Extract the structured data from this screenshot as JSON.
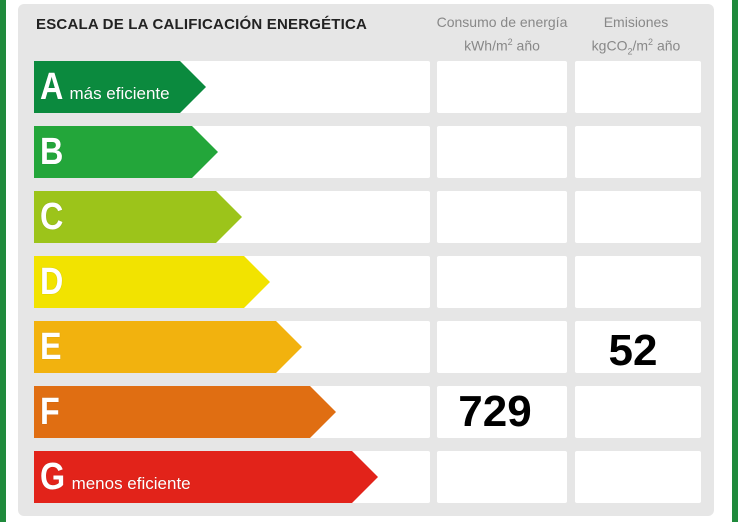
{
  "title": "ESCALA DE LA CALIFICACIÓN ENERGÉTICA",
  "columns": {
    "consumo": {
      "line1": "Consumo de energía",
      "unit_a": "kWh/m",
      "unit_sup": "2",
      "unit_b": " año"
    },
    "emisiones": {
      "line1": "Emisiones",
      "unit_a": "kgCO",
      "unit_sub": "2",
      "unit_b": "/m",
      "unit_sup": "2",
      "unit_c": " año"
    }
  },
  "ratings": [
    {
      "letter": "A",
      "label": "más eficiente",
      "color": "#0b8a3e"
    },
    {
      "letter": "B",
      "label": "",
      "color": "#23a63a"
    },
    {
      "letter": "C",
      "label": "",
      "color": "#9cc41a"
    },
    {
      "letter": "D",
      "label": "",
      "color": "#f2e300"
    },
    {
      "letter": "E",
      "label": "",
      "color": "#f2b20e"
    },
    {
      "letter": "F",
      "label": "",
      "color": "#e06e12"
    },
    {
      "letter": "G",
      "label": "menos eficiente",
      "color": "#e2231a"
    }
  ],
  "values": {
    "consumo": {
      "rating": "F",
      "value": "729"
    },
    "emisiones": {
      "rating": "E",
      "value": "52"
    }
  }
}
